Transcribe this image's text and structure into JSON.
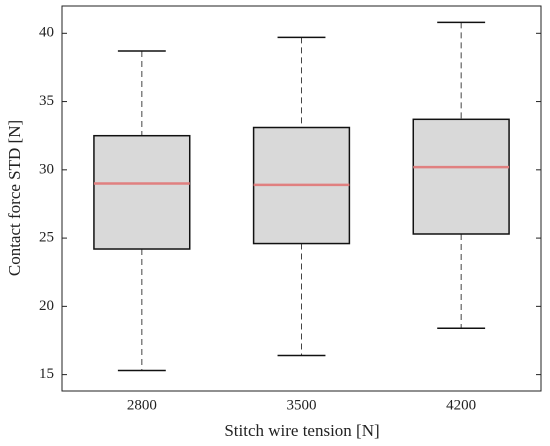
{
  "chart_data": {
    "type": "box",
    "xlabel": "Stitch wire tension  [N]",
    "ylabel": "Contact force STD  [N]",
    "categories": [
      "2800",
      "3500",
      "4200"
    ],
    "whisker_low": [
      15.3,
      16.4,
      18.4
    ],
    "q1": [
      24.2,
      24.6,
      25.3
    ],
    "median": [
      29.0,
      28.9,
      30.2
    ],
    "q3": [
      32.5,
      33.1,
      33.7
    ],
    "whisker_high": [
      38.7,
      39.7,
      40.8
    ],
    "box_color": "#d9d9d9",
    "median_color": "#e08080",
    "ylim": [
      13.8,
      42
    ],
    "yticks": [
      15,
      20,
      25,
      30,
      35,
      40
    ]
  }
}
